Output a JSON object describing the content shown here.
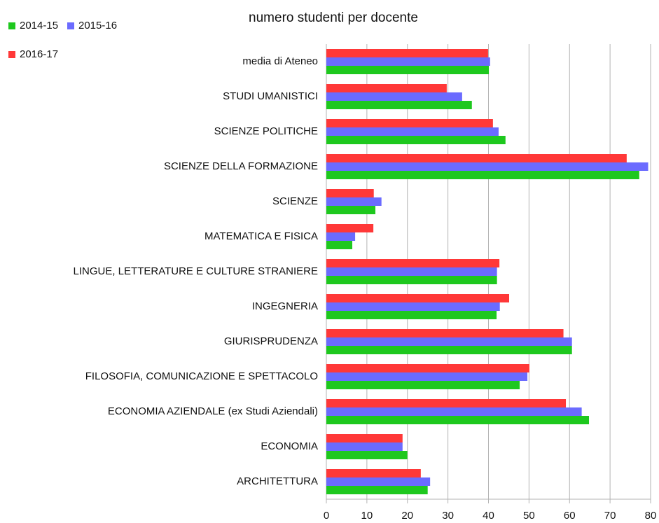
{
  "chart_data": {
    "type": "hbar",
    "title": "numero studenti per docente",
    "categories": [
      "media di Ateneo",
      "STUDI UMANISTICI",
      "SCIENZE POLITICHE",
      "SCIENZE DELLA FORMAZIONE",
      "SCIENZE",
      "MATEMATICA E FISICA",
      "LINGUE, LETTERATURE E CULTURE STRANIERE",
      "INGEGNERIA",
      "GIURISPRUDENZA",
      "FILOSOFIA, COMUNICAZIONE E SPETTACOLO",
      "ECONOMIA AZIENDALE (ex Studi Aziendali)",
      "ECONOMIA",
      "ARCHITETTURA"
    ],
    "series": [
      {
        "name": "2014-15",
        "color": "#1ec81e",
        "values": [
          40.1,
          35.9,
          44.2,
          77.2,
          12.1,
          6.4,
          42.1,
          42.0,
          60.6,
          47.7,
          64.8,
          20.0,
          25.0
        ]
      },
      {
        "name": "2015-16",
        "color": "#6b6bff",
        "values": [
          40.4,
          33.5,
          42.5,
          79.4,
          13.6,
          7.1,
          42.1,
          42.8,
          60.6,
          49.6,
          63.0,
          18.8,
          25.6
        ]
      },
      {
        "name": "2016-17",
        "color": "#ff3838",
        "values": [
          39.9,
          29.7,
          41.1,
          74.1,
          11.7,
          11.6,
          42.7,
          45.1,
          58.5,
          50.1,
          59.1,
          18.8,
          23.3
        ]
      }
    ],
    "xlim": [
      0,
      80
    ],
    "xticks": [
      0,
      10,
      20,
      30,
      40,
      50,
      60,
      70,
      80
    ],
    "grid": true,
    "legend": "top-left"
  }
}
